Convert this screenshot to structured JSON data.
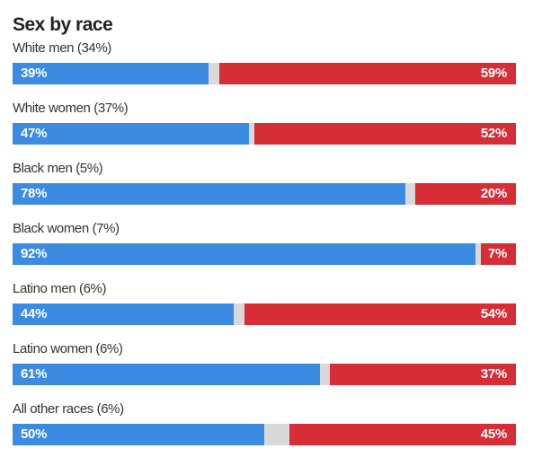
{
  "colors": {
    "dem": "#3c8be3",
    "rep": "#d62d36",
    "other": "#d9d9d9"
  },
  "chart_data": {
    "type": "bar",
    "stacked": true,
    "orientation": "horizontal",
    "title": "Sex by race",
    "xlim": [
      0,
      100
    ],
    "categories": [
      "White men (34%)",
      "White women (37%)",
      "Black men (5%)",
      "Black women (7%)",
      "Latino men (6%)",
      "Latino women (6%)",
      "All other races (6%)"
    ],
    "series": [
      {
        "values": [
          39,
          47,
          78,
          92,
          44,
          61,
          50
        ],
        "labels": [
          "39%",
          "47%",
          "78%",
          "92%",
          "44%",
          "61%",
          "50%"
        ],
        "color": "#3c8be3"
      },
      {
        "values": [
          59,
          52,
          20,
          7,
          54,
          37,
          45
        ],
        "labels": [
          "59%",
          "52%",
          "20%",
          "7%",
          "54%",
          "37%",
          "45%"
        ],
        "color": "#d62d36"
      }
    ]
  }
}
